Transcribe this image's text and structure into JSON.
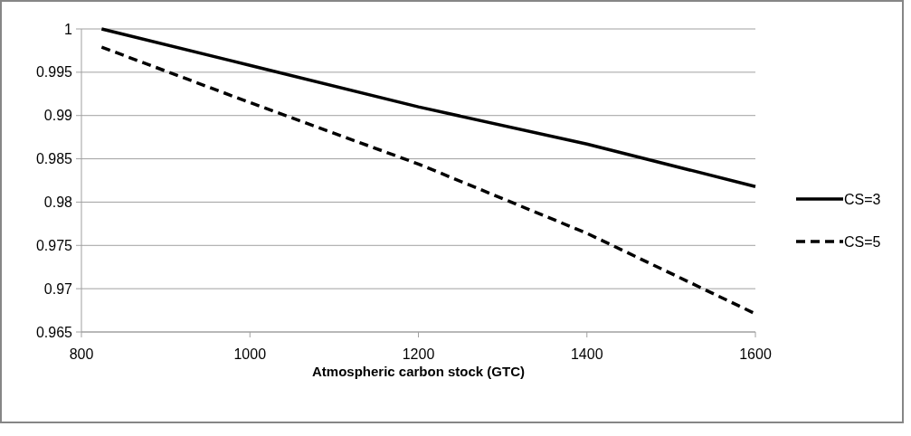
{
  "chart_data": {
    "type": "line",
    "xlabel": "Atmospheric carbon stock (GTC)",
    "xlim": [
      800,
      1600
    ],
    "xticks": [
      800,
      1000,
      1200,
      1400,
      1600
    ],
    "ylim": [
      0.965,
      1
    ],
    "yticks": [
      0.965,
      0.97,
      0.975,
      0.98,
      0.985,
      0.99,
      0.995,
      1
    ],
    "grid": "y",
    "legend": "right",
    "series": [
      {
        "name": "CS=3",
        "color": "#000000",
        "line_style": "solid",
        "x": [
          824,
          1000,
          1200,
          1400,
          1600
        ],
        "values": [
          1,
          0.9958,
          0.991,
          0.9867,
          0.9818
        ]
      },
      {
        "name": "CS=5",
        "color": "#000000",
        "line_style": "dashed",
        "x": [
          824,
          1000,
          1200,
          1400,
          1600
        ],
        "values": [
          0.9979,
          0.9915,
          0.9844,
          0.9764,
          0.9671
        ]
      }
    ]
  }
}
